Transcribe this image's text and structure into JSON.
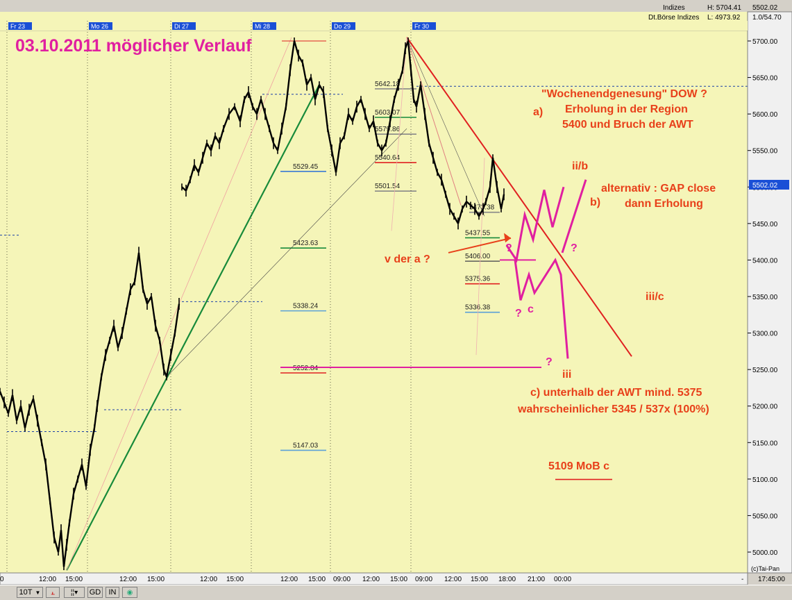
{
  "header": {
    "index_name": "Indizes",
    "exchange": "Dt.Börse Indizes",
    "high_label": "H: 5704.41",
    "low_label": "L: 4973.92",
    "last_value": "5502.02",
    "ratio": "1.0/54.70"
  },
  "footer": {
    "copyright": "(c)Tai-Pan",
    "clock": "17:45:00",
    "dash": "-",
    "interval": "10T",
    "buttons": [
      "GD",
      "IN"
    ]
  },
  "chart_data": {
    "type": "line",
    "title": "03.10.2011 möglicher Verlauf",
    "ylim": [
      4973,
      5730
    ],
    "y_ticks": [
      5000,
      5050,
      5100,
      5150,
      5200,
      5250,
      5300,
      5350,
      5400,
      5450,
      5500,
      5550,
      5600,
      5650,
      5700
    ],
    "day_labels": [
      "Fr 23",
      "Mo 26",
      "Di 27",
      "Mi 28",
      "Do 29",
      "Fr 30"
    ],
    "x_tick_labels": [
      "0",
      "12:00",
      "15:00",
      "12:00",
      "15:00",
      "12:00",
      "15:00",
      "12:00",
      "15:00",
      "09:00",
      "12:00",
      "15:00",
      "09:00",
      "12:00",
      "15:00",
      "18:00",
      "21:00",
      "00:00"
    ],
    "price_series": {
      "name": "",
      "points": [
        [
          0,
          5220
        ],
        [
          6,
          5205
        ],
        [
          12,
          5190
        ],
        [
          18,
          5215
        ],
        [
          24,
          5180
        ],
        [
          30,
          5200
        ],
        [
          36,
          5170
        ],
        [
          42,
          5195
        ],
        [
          48,
          5210
        ],
        [
          54,
          5180
        ],
        [
          60,
          5150
        ],
        [
          66,
          5120
        ],
        [
          72,
          5070
        ],
        [
          78,
          5020
        ],
        [
          84,
          5000
        ],
        [
          88,
          5030
        ],
        [
          92,
          4980
        ],
        [
          96,
          5010
        ],
        [
          100,
          5040
        ],
        [
          106,
          5080
        ],
        [
          112,
          5100
        ],
        [
          118,
          5120
        ],
        [
          124,
          5090
        ],
        [
          130,
          5140
        ],
        [
          136,
          5170
        ],
        [
          140,
          5200
        ],
        [
          146,
          5240
        ],
        [
          152,
          5270
        ],
        [
          158,
          5290
        ],
        [
          164,
          5310
        ],
        [
          170,
          5280
        ],
        [
          176,
          5300
        ],
        [
          182,
          5330
        ],
        [
          188,
          5360
        ],
        [
          194,
          5370
        ],
        [
          200,
          5410
        ],
        [
          206,
          5360
        ],
        [
          212,
          5340
        ],
        [
          218,
          5350
        ],
        [
          224,
          5310
        ],
        [
          230,
          5290
        ],
        [
          236,
          5250
        ],
        [
          240,
          5240
        ],
        [
          246,
          5270
        ],
        [
          252,
          5300
        ],
        [
          258,
          5340
        ],
        [
          262,
          5500
        ],
        [
          268,
          5495
        ],
        [
          274,
          5510
        ],
        [
          280,
          5530
        ],
        [
          286,
          5520
        ],
        [
          292,
          5540
        ],
        [
          298,
          5560
        ],
        [
          304,
          5550
        ],
        [
          310,
          5570
        ],
        [
          316,
          5560
        ],
        [
          322,
          5580
        ],
        [
          330,
          5600
        ],
        [
          338,
          5610
        ],
        [
          346,
          5590
        ],
        [
          352,
          5620
        ],
        [
          358,
          5630
        ],
        [
          364,
          5610
        ],
        [
          370,
          5600
        ],
        [
          376,
          5620
        ],
        [
          382,
          5600
        ],
        [
          388,
          5580
        ],
        [
          394,
          5560
        ],
        [
          400,
          5550
        ],
        [
          406,
          5580
        ],
        [
          412,
          5610
        ],
        [
          418,
          5660
        ],
        [
          424,
          5700
        ],
        [
          430,
          5680
        ],
        [
          436,
          5670
        ],
        [
          442,
          5640
        ],
        [
          448,
          5650
        ],
        [
          454,
          5620
        ],
        [
          460,
          5640
        ],
        [
          466,
          5630
        ],
        [
          472,
          5580
        ],
        [
          478,
          5550
        ],
        [
          484,
          5520
        ],
        [
          490,
          5560
        ],
        [
          496,
          5570
        ],
        [
          502,
          5600
        ],
        [
          508,
          5590
        ],
        [
          514,
          5610
        ],
        [
          520,
          5620
        ],
        [
          526,
          5600
        ],
        [
          532,
          5580
        ],
        [
          538,
          5590
        ],
        [
          544,
          5560
        ],
        [
          550,
          5550
        ],
        [
          556,
          5560
        ],
        [
          562,
          5590
        ],
        [
          568,
          5620
        ],
        [
          574,
          5640
        ],
        [
          580,
          5660
        ],
        [
          584,
          5690
        ],
        [
          588,
          5700
        ],
        [
          592,
          5660
        ],
        [
          596,
          5620
        ],
        [
          600,
          5610
        ],
        [
          606,
          5640
        ],
        [
          612,
          5600
        ],
        [
          618,
          5560
        ],
        [
          624,
          5540
        ],
        [
          630,
          5520
        ],
        [
          636,
          5510
        ],
        [
          642,
          5490
        ],
        [
          648,
          5470
        ],
        [
          654,
          5460
        ],
        [
          660,
          5450
        ],
        [
          666,
          5470
        ],
        [
          672,
          5480
        ],
        [
          678,
          5475
        ],
        [
          684,
          5470
        ],
        [
          690,
          5460
        ],
        [
          696,
          5470
        ],
        [
          700,
          5480
        ],
        [
          706,
          5500
        ],
        [
          710,
          5540
        ],
        [
          716,
          5500
        ],
        [
          722,
          5470
        ],
        [
          726,
          5490
        ]
      ]
    },
    "price_levels": [
      {
        "label": "5642.18",
        "value": 5642
      },
      {
        "label": "5603.07",
        "value": 5603
      },
      {
        "label": "5579.86",
        "value": 5580
      },
      {
        "label": "5540.64",
        "value": 5541
      },
      {
        "label": "5529.45",
        "value": 5529
      },
      {
        "label": "5501.54",
        "value": 5502
      },
      {
        "label": "5473.38",
        "value": 5473
      },
      {
        "label": "5437.55",
        "value": 5438
      },
      {
        "label": "5423.63",
        "value": 5424
      },
      {
        "label": "5406.00",
        "value": 5406
      },
      {
        "label": "5375.36",
        "value": 5375
      },
      {
        "label": "5338.24",
        "value": 5338
      },
      {
        "label": "5336.38",
        "value": 5336
      },
      {
        "label": "5252.84",
        "value": 5253
      },
      {
        "label": "5147.03",
        "value": 5147
      }
    ],
    "annotations": [
      {
        "text": "\"Wochenendgenesung\" DOW ?",
        "color": "#e8401a"
      },
      {
        "text": "a)",
        "color": "#e8401a"
      },
      {
        "text": "Erholung in der Region",
        "color": "#e8401a"
      },
      {
        "text": "5400 und Bruch der AWT",
        "color": "#e8401a"
      },
      {
        "text": "ii/b",
        "color": "#e8401a"
      },
      {
        "text": "alternativ : GAP close",
        "color": "#e8401a"
      },
      {
        "text": "b)",
        "color": "#e8401a"
      },
      {
        "text": "dann Erholung",
        "color": "#e8401a"
      },
      {
        "text": "v der a ?",
        "color": "#e8401a"
      },
      {
        "text": "iii/c",
        "color": "#e8401a"
      },
      {
        "text": "c",
        "color": "#e01fa0"
      },
      {
        "text": "?",
        "color": "#e01fa0"
      },
      {
        "text": "iii",
        "color": "#e8401a"
      },
      {
        "text": "c) unterhalb der AWT mind. 5375",
        "color": "#e8401a"
      },
      {
        "text": "wahrscheinlicher 5345 / 537x (100%)",
        "color": "#e8401a"
      },
      {
        "text": "5109 MoB c",
        "color": "#e8401a"
      }
    ],
    "colors": {
      "background": "#f5f5b8",
      "price": "#000000",
      "trend_green": "#178a3a",
      "trend_red": "#e02020",
      "projection": "#e01fa0",
      "annotation": "#e8401a",
      "title": "#e01fa0"
    }
  }
}
